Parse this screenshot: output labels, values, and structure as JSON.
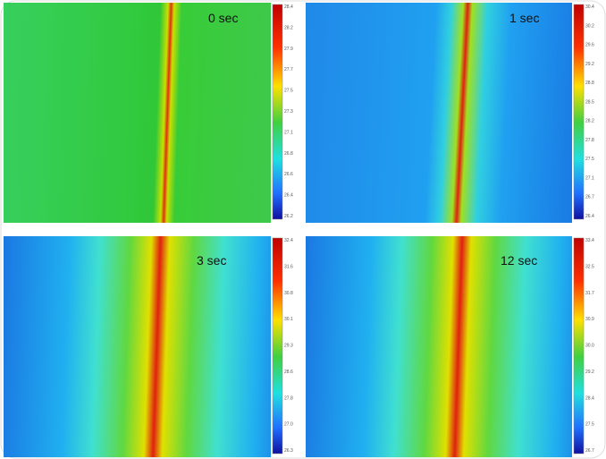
{
  "panels": [
    {
      "label": "0 sec",
      "colorbar_ticks": [
        "28.4",
        "28.2",
        "27.9",
        "27.7",
        "27.5",
        "27.3",
        "27.1",
        "26.8",
        "26.6",
        "26.4",
        "26.2"
      ]
    },
    {
      "label": "1 sec",
      "colorbar_ticks": [
        "30.4",
        "30.2",
        "29.6",
        "29.2",
        "28.8",
        "28.5",
        "28.2",
        "27.8",
        "27.5",
        "27.1",
        "26.7",
        "26.4"
      ]
    },
    {
      "label": "3 sec",
      "colorbar_ticks": [
        "32.4",
        "31.6",
        "30.8",
        "30.1",
        "29.3",
        "28.6",
        "27.8",
        "27.0",
        "26.3"
      ]
    },
    {
      "label": "12 sec",
      "colorbar_ticks": [
        "33.4",
        "32.5",
        "31.7",
        "30.9",
        "30.0",
        "29.2",
        "28.4",
        "27.5",
        "26.7"
      ]
    }
  ]
}
